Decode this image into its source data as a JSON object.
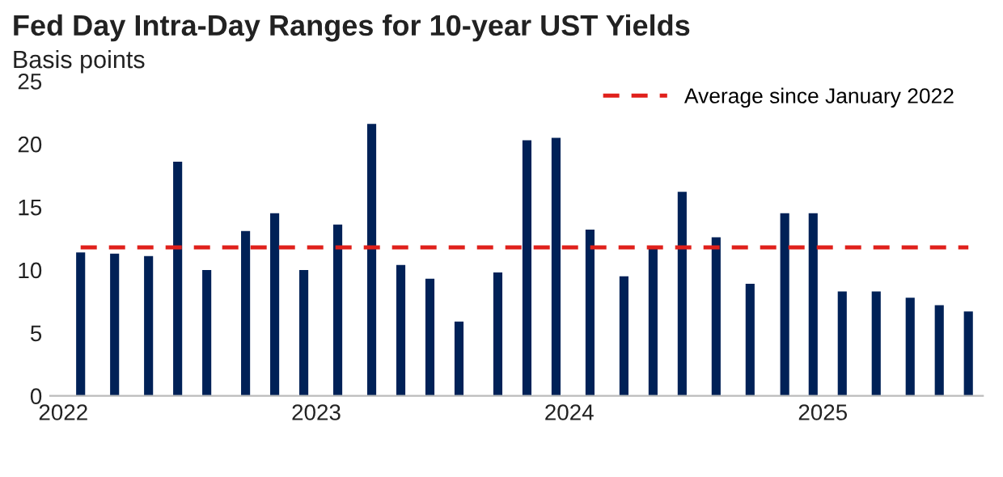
{
  "chart_data": {
    "type": "bar",
    "title": "Fed Day Intra-Day Ranges for 10-year UST Yields",
    "subtitle": "Basis points",
    "x": [
      "2022-01-26",
      "2022-03-16",
      "2022-05-04",
      "2022-06-15",
      "2022-07-27",
      "2022-09-21",
      "2022-11-02",
      "2022-12-14",
      "2023-02-01",
      "2023-03-22",
      "2023-05-03",
      "2023-06-14",
      "2023-07-26",
      "2023-09-20",
      "2023-11-01",
      "2023-12-13",
      "2024-01-31",
      "2024-03-20",
      "2024-05-01",
      "2024-06-12",
      "2024-07-31",
      "2024-09-18",
      "2024-11-07",
      "2024-12-18",
      "2025-01-29",
      "2025-03-19",
      "2025-05-07",
      "2025-06-18",
      "2025-07-30"
    ],
    "values": [
      11.4,
      11.3,
      11.1,
      18.6,
      10.0,
      13.1,
      14.5,
      10.0,
      13.6,
      21.6,
      10.4,
      9.3,
      5.9,
      9.8,
      20.3,
      20.5,
      13.2,
      9.5,
      11.8,
      16.2,
      12.6,
      8.9,
      14.5,
      14.5,
      8.3,
      8.3,
      7.8,
      7.2,
      6.7
    ],
    "color": "#002157",
    "xlim": [
      "2021-12-13",
      "2025-08-20"
    ],
    "xticks": [
      "2022",
      "2023",
      "2024",
      "2025"
    ],
    "ylim": [
      0,
      25
    ],
    "yticks": [
      0,
      5,
      10,
      15,
      20,
      25
    ],
    "grid": false,
    "ref_lines": [
      {
        "axis": "y",
        "value": 11.8,
        "label": "Average since January 2022",
        "color": "#e0201b",
        "line_style": "dashed"
      }
    ],
    "legend": "top right"
  }
}
